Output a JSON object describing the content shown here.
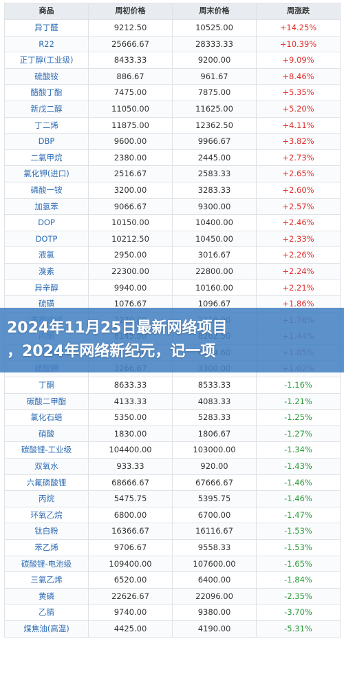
{
  "table": {
    "headers": [
      "商品",
      "周初价格",
      "周末价格",
      "周涨跌"
    ],
    "rows": [
      {
        "name": "异丁醛",
        "start": "9212.50",
        "end": "10525.00",
        "change": "+14.25%",
        "dir": "up"
      },
      {
        "name": "R22",
        "start": "25666.67",
        "end": "28333.33",
        "change": "+10.39%",
        "dir": "up"
      },
      {
        "name": "正丁醇(工业级)",
        "start": "8433.33",
        "end": "9200.00",
        "change": "+9.09%",
        "dir": "up"
      },
      {
        "name": "硫酸铵",
        "start": "886.67",
        "end": "961.67",
        "change": "+8.46%",
        "dir": "up"
      },
      {
        "name": "醋酸丁酯",
        "start": "7475.00",
        "end": "7875.00",
        "change": "+5.35%",
        "dir": "up"
      },
      {
        "name": "新戊二醇",
        "start": "11050.00",
        "end": "11625.00",
        "change": "+5.20%",
        "dir": "up"
      },
      {
        "name": "丁二烯",
        "start": "11875.00",
        "end": "12362.50",
        "change": "+4.11%",
        "dir": "up"
      },
      {
        "name": "DBP",
        "start": "9600.00",
        "end": "9966.67",
        "change": "+3.82%",
        "dir": "up"
      },
      {
        "name": "二氯甲烷",
        "start": "2380.00",
        "end": "2445.00",
        "change": "+2.73%",
        "dir": "up"
      },
      {
        "name": "氯化钾(进口)",
        "start": "2516.67",
        "end": "2583.33",
        "change": "+2.65%",
        "dir": "up"
      },
      {
        "name": "磷酸一铵",
        "start": "3200.00",
        "end": "3283.33",
        "change": "+2.60%",
        "dir": "up"
      },
      {
        "name": "加氢苯",
        "start": "9066.67",
        "end": "9300.00",
        "change": "+2.57%",
        "dir": "up"
      },
      {
        "name": "DOP",
        "start": "10150.00",
        "end": "10400.00",
        "change": "+2.46%",
        "dir": "up"
      },
      {
        "name": "DOTP",
        "start": "10212.50",
        "end": "10450.00",
        "change": "+2.33%",
        "dir": "up"
      },
      {
        "name": "液氯",
        "start": "2950.00",
        "end": "3016.67",
        "change": "+2.26%",
        "dir": "up"
      },
      {
        "name": "溴素",
        "start": "22300.00",
        "end": "22800.00",
        "change": "+2.24%",
        "dir": "up"
      },
      {
        "name": "异辛醇",
        "start": "9940.00",
        "end": "10160.00",
        "change": "+2.21%",
        "dir": "up"
      },
      {
        "name": "硫磺",
        "start": "1076.67",
        "end": "1096.67",
        "change": "+1.86%",
        "dir": "up"
      },
      {
        "name": "重质纯碱",
        "start": "2270.00",
        "end": "2310.00",
        "change": "+1.76%",
        "dir": "up"
      },
      {
        "name": "丙酮",
        "start": "8145.00",
        "end": "8262.50",
        "change": "+1.44%",
        "dir": "up"
      },
      {
        "name": "丙烯",
        "start": "6842.60",
        "end": "6914.60",
        "change": "+1.05%",
        "dir": "up"
      },
      {
        "name": "硫酸钾",
        "start": "3266.67",
        "end": "3300.00",
        "change": "+1.02%",
        "dir": "up"
      },
      {
        "name": "丁酮",
        "start": "8633.33",
        "end": "8533.33",
        "change": "-1.16%",
        "dir": "down"
      },
      {
        "name": "碳酸二甲酯",
        "start": "4133.33",
        "end": "4083.33",
        "change": "-1.21%",
        "dir": "down"
      },
      {
        "name": "氯化石蜡",
        "start": "5350.00",
        "end": "5283.33",
        "change": "-1.25%",
        "dir": "down"
      },
      {
        "name": "硝酸",
        "start": "1830.00",
        "end": "1806.67",
        "change": "-1.27%",
        "dir": "down"
      },
      {
        "name": "碳酸锂-工业级",
        "start": "104400.00",
        "end": "103000.00",
        "change": "-1.34%",
        "dir": "down"
      },
      {
        "name": "双氧水",
        "start": "933.33",
        "end": "920.00",
        "change": "-1.43%",
        "dir": "down"
      },
      {
        "name": "六氟磷酸锂",
        "start": "68666.67",
        "end": "67666.67",
        "change": "-1.46%",
        "dir": "down"
      },
      {
        "name": "丙烷",
        "start": "5475.75",
        "end": "5395.75",
        "change": "-1.46%",
        "dir": "down"
      },
      {
        "name": "环氧乙烷",
        "start": "6800.00",
        "end": "6700.00",
        "change": "-1.47%",
        "dir": "down"
      },
      {
        "name": "钛白粉",
        "start": "16366.67",
        "end": "16116.67",
        "change": "-1.53%",
        "dir": "down"
      },
      {
        "name": "苯乙烯",
        "start": "9706.67",
        "end": "9558.33",
        "change": "-1.53%",
        "dir": "down"
      },
      {
        "name": "碳酸锂-电池级",
        "start": "109400.00",
        "end": "107600.00",
        "change": "-1.65%",
        "dir": "down"
      },
      {
        "name": "三氯乙烯",
        "start": "6520.00",
        "end": "6400.00",
        "change": "-1.84%",
        "dir": "down"
      },
      {
        "name": "黄磷",
        "start": "22626.67",
        "end": "22096.00",
        "change": "-2.35%",
        "dir": "down"
      },
      {
        "name": "乙腈",
        "start": "9740.00",
        "end": "9380.00",
        "change": "-3.70%",
        "dir": "down"
      },
      {
        "name": "煤焦油(高温)",
        "start": "4425.00",
        "end": "4190.00",
        "change": "-5.31%",
        "dir": "down"
      }
    ]
  },
  "banner": {
    "line1": "2024年11月25日最新网络项目",
    "line2": "，2024年网络新纪元，记一项"
  },
  "colors": {
    "up": "#e0312f",
    "down": "#2d9b3c",
    "name": "#2f6db5",
    "header_bg": "#e8ecf1",
    "banner_bg": "#4682c3"
  }
}
